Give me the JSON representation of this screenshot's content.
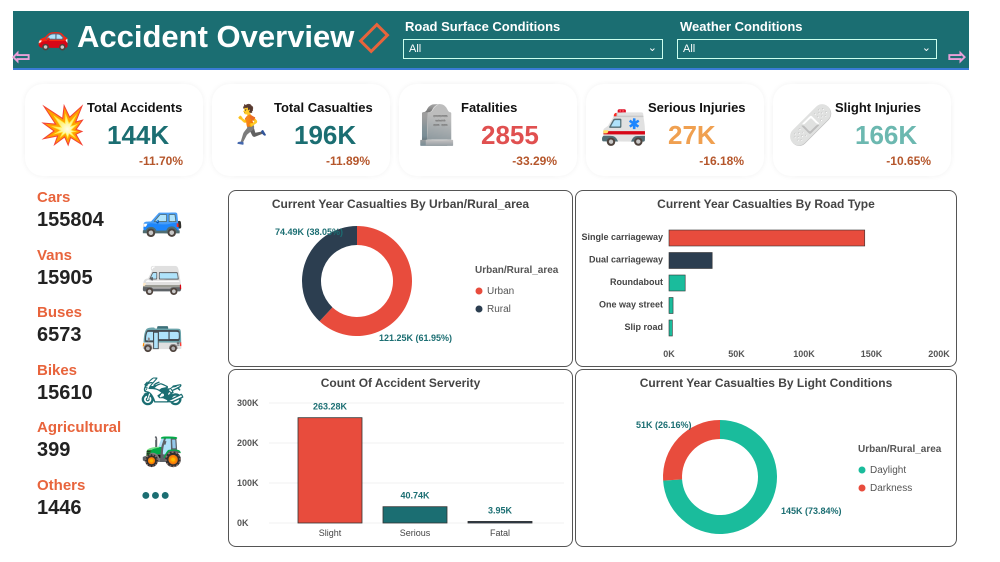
{
  "header": {
    "title": "Accident Overview",
    "filters": [
      {
        "label": "Road Surface Conditions",
        "value": "All"
      },
      {
        "label": "Weather Conditions",
        "value": "All"
      }
    ]
  },
  "kpis": [
    {
      "label": "Total Accidents",
      "value": "144K",
      "change": "-11.70%",
      "color": "#1b6e72",
      "icon": "car-crash-icon"
    },
    {
      "label": "Total Casualties",
      "value": "196K",
      "change": "-11.89%",
      "color": "#1b6e72",
      "icon": "injured-person-icon"
    },
    {
      "label": "Fatalities",
      "value": "2855",
      "change": "-33.29%",
      "color": "#e05050",
      "icon": "gravestone-icon"
    },
    {
      "label": "Serious Injuries",
      "value": "27K",
      "change": "-16.18%",
      "color": "#f0a050",
      "icon": "ambulance-icon"
    },
    {
      "label": "Slight Injuries",
      "value": "166K",
      "change": "-10.65%",
      "color": "#6cb8b0",
      "icon": "bandage-icon"
    }
  ],
  "vehicles": [
    {
      "label": "Cars",
      "value": "155804",
      "icon": "car-icon"
    },
    {
      "label": "Vans",
      "value": "15905",
      "icon": "van-icon"
    },
    {
      "label": "Buses",
      "value": "6573",
      "icon": "bus-icon"
    },
    {
      "label": "Bikes",
      "value": "15610",
      "icon": "motorbike-icon"
    },
    {
      "label": "Agricultural",
      "value": "399",
      "icon": "tractor-icon"
    },
    {
      "label": "Others",
      "value": "1446",
      "icon": "others-icon"
    }
  ],
  "chart_data": [
    {
      "type": "pie",
      "donut": true,
      "title": "Current Year Casualties By Urban/Rural_area",
      "legend_title": "Urban/Rural_area",
      "legend": "right",
      "slices": [
        {
          "name": "Urban",
          "value": 121.25,
          "label": "121.25K (61.95%)",
          "color": "#e84c3d"
        },
        {
          "name": "Rural",
          "value": 74.49,
          "label": "74.49K (38.05%)",
          "color": "#2c3e50"
        }
      ]
    },
    {
      "type": "bar",
      "orientation": "horizontal",
      "title": "Current Year Casualties By Road Type",
      "categories": [
        "Single carriageway",
        "Dual carriageway",
        "Roundabout",
        "One way street",
        "Slip road"
      ],
      "values": [
        145000,
        32000,
        12000,
        3000,
        2500
      ],
      "colors": [
        "#e84c3d",
        "#2c3e50",
        "#1abc9c",
        "#1abc9c",
        "#1abc9c"
      ],
      "xlim": [
        0,
        200000
      ],
      "xticks": [
        "0K",
        "50K",
        "100K",
        "150K",
        "200K"
      ]
    },
    {
      "type": "bar",
      "title": "Count Of Accident Serverity",
      "categories": [
        "Slight",
        "Serious",
        "Fatal"
      ],
      "values": [
        263280,
        40740,
        3950
      ],
      "data_labels": [
        "263.28K",
        "40.74K",
        "3.95K"
      ],
      "colors": [
        "#e84c3d",
        "#1b6e72",
        "#2c3e50"
      ],
      "ylim": [
        0,
        300000
      ],
      "yticks": [
        "0K",
        "100K",
        "200K",
        "300K"
      ]
    },
    {
      "type": "pie",
      "donut": true,
      "title": "Current Year Casualties By Light Conditions",
      "legend_title": "Urban/Rural_area",
      "legend": "right",
      "slices": [
        {
          "name": "Daylight",
          "value": 145,
          "label": "145K (73.84%)",
          "color": "#1abc9c"
        },
        {
          "name": "Darkness",
          "value": 51,
          "label": "51K (26.16%)",
          "color": "#e84c3d"
        }
      ]
    }
  ]
}
